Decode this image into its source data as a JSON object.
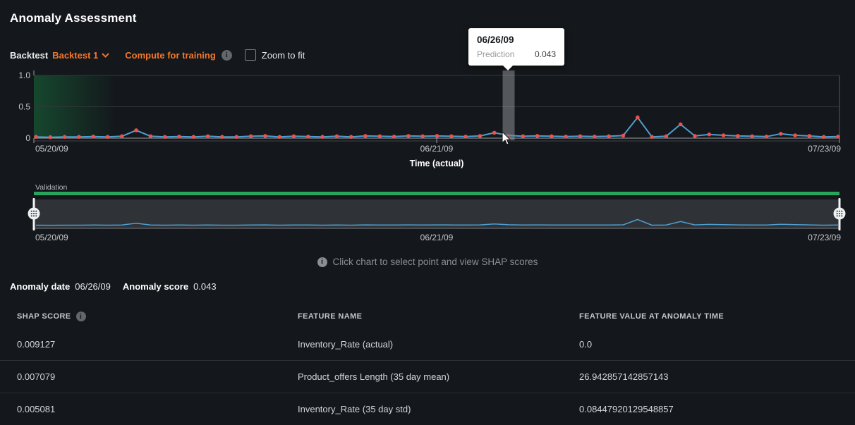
{
  "page": {
    "title": "Anomaly Assessment"
  },
  "icons": {
    "info_glyph": "i"
  },
  "colors": {
    "accent_orange": "#f4772b",
    "validation_green": "#27a55b",
    "train_gradient_green": "rgba(23,111,62,0.55)",
    "line_blue": "#4e9fd0",
    "point_red": "#e85350",
    "background": "#14171b"
  },
  "controls": {
    "backtest_label": "Backtest",
    "backtest_value": "Backtest 1",
    "compute_label": "Compute for training",
    "zoom_fit_label": "Zoom to fit",
    "zoom_fit_checked": false
  },
  "tooltip": {
    "date": "06/26/09",
    "metric": "Prediction",
    "value": "0.043"
  },
  "chart_data": {
    "type": "line",
    "xlabel": "Time (actual)",
    "x_ticks": [
      "05/20/09",
      "06/21/09",
      "07/23/09"
    ],
    "y_tick_labels": [
      "1.0",
      "0.5",
      "0"
    ],
    "y_tick_values": [
      1.0,
      0.5,
      0
    ],
    "ylim": [
      0,
      1
    ],
    "grid": true,
    "series": [
      {
        "name": "Prediction",
        "values": [
          0.02,
          0.015,
          0.02,
          0.02,
          0.025,
          0.02,
          0.03,
          0.125,
          0.03,
          0.02,
          0.025,
          0.02,
          0.03,
          0.02,
          0.02,
          0.03,
          0.035,
          0.02,
          0.03,
          0.025,
          0.02,
          0.03,
          0.02,
          0.035,
          0.03,
          0.025,
          0.035,
          0.03,
          0.035,
          0.03,
          0.025,
          0.035,
          0.085,
          0.043,
          0.03,
          0.035,
          0.03,
          0.025,
          0.03,
          0.025,
          0.03,
          0.04,
          0.33,
          0.02,
          0.03,
          0.22,
          0.035,
          0.06,
          0.045,
          0.035,
          0.03,
          0.025,
          0.07,
          0.045,
          0.035,
          0.02,
          0.025
        ]
      }
    ],
    "selected_point": {
      "index": 33,
      "date": "06/26/09",
      "value": 0.043
    },
    "minimap": {
      "partition_label": "Validation",
      "x_ticks": [
        "05/20/09",
        "06/21/09",
        "07/23/09"
      ],
      "brush": {
        "start": "05/20/09",
        "end": "07/23/09",
        "full_range_selected": true
      }
    }
  },
  "hint": {
    "text": "Click chart to select point and view SHAP scores"
  },
  "anomaly": {
    "date_label": "Anomaly date",
    "date": "06/26/09",
    "score_label": "Anomaly score",
    "score": "0.043"
  },
  "shap_table": {
    "headers": [
      "SHAP SCORE",
      "FEATURE NAME",
      "FEATURE VALUE AT ANOMALY TIME"
    ],
    "rows": [
      {
        "score": "0.009127",
        "feature": "Inventory_Rate (actual)",
        "value": "0.0"
      },
      {
        "score": "0.007079",
        "feature": "Product_offers Length (35 day mean)",
        "value": "26.942857142857143"
      },
      {
        "score": "0.005081",
        "feature": "Inventory_Rate (35 day std)",
        "value": "0.08447920129548857"
      }
    ]
  }
}
